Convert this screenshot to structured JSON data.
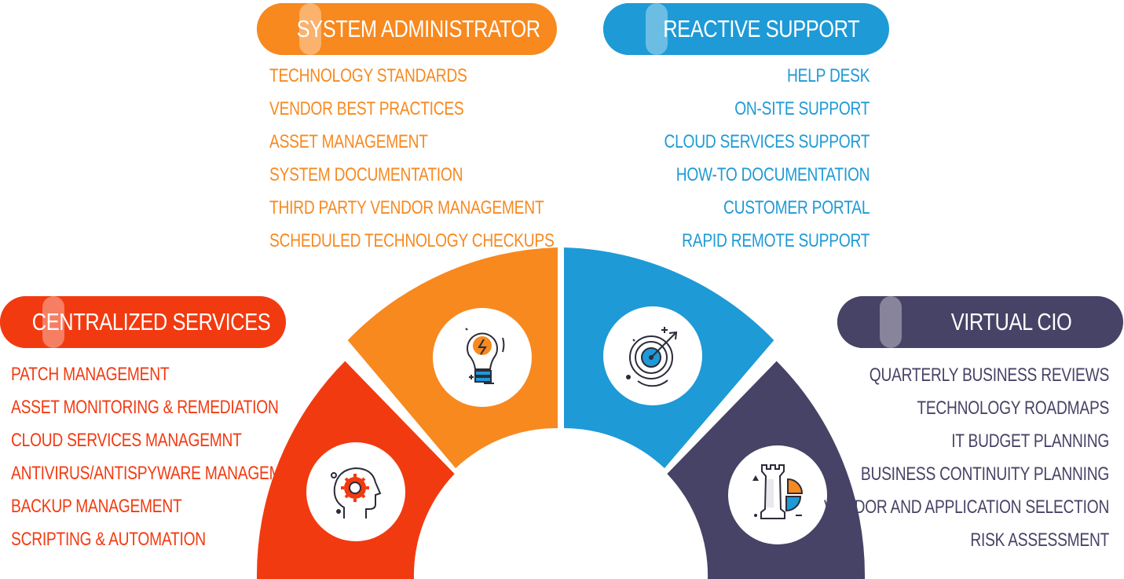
{
  "colors": {
    "centralized": "#f23a10",
    "sysadmin": "#f7891f",
    "reactive": "#1e9ad6",
    "vcio": "#474366"
  },
  "sections": {
    "system_administrator": {
      "title": "SYSTEM ADMINISTRATOR",
      "icon": "lightbulb-icon",
      "items": [
        "TECHNOLOGY STANDARDS",
        "VENDOR BEST PRACTICES",
        "ASSET  MANAGEMENT",
        "SYSTEM DOCUMENTATION",
        "THIRD PARTY VENDOR MANAGEMENT",
        "SCHEDULED TECHNOLOGY CHECKUPS"
      ]
    },
    "reactive_support": {
      "title": "REACTIVE SUPPORT",
      "icon": "target-icon",
      "items": [
        "HELP DESK",
        "ON-SITE SUPPORT",
        "CLOUD SERVICES SUPPORT",
        "HOW-TO DOCUMENTATION",
        "CUSTOMER PORTAL",
        "RAPID REMOTE SUPPORT"
      ]
    },
    "centralized_services": {
      "title": "CENTRALIZED SERVICES",
      "icon": "head-gear-icon",
      "items": [
        "PATCH MANAGEMENT",
        "ASSET MONITORING & REMEDIATION",
        "CLOUD SERVICES MANAGEMNT",
        "ANTIVIRUS/ANTISPYWARE MANAGEMENT",
        "BACKUP MANAGEMENT",
        "SCRIPTING & AUTOMATION"
      ]
    },
    "virtual_cio": {
      "title": "VIRTUAL CIO",
      "icon": "chess-rook-chart-icon",
      "items": [
        "QUARTERLY BUSINESS REVIEWS",
        "TECHNOLOGY ROADMAPS",
        "IT BUDGET PLANNING",
        "BUSINESS CONTINUITY PLANNING",
        "VENDOR AND APPLICATION SELECTION",
        "RISK ASSESSMENT"
      ]
    }
  }
}
